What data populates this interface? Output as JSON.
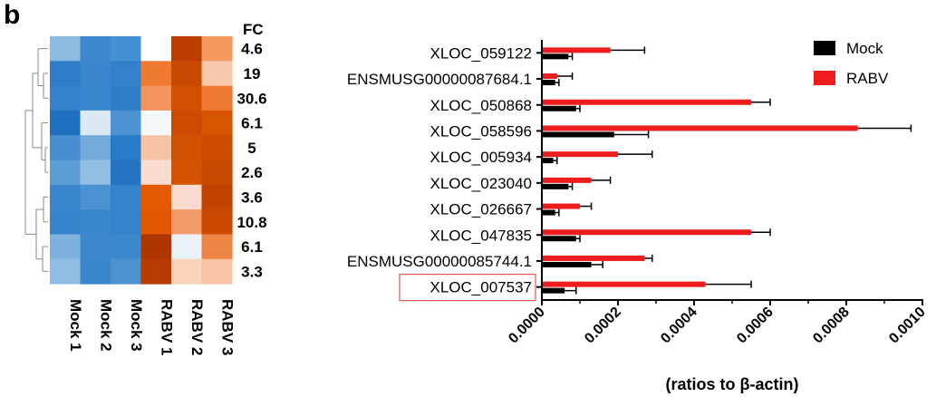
{
  "panel_label": "b",
  "heatmap": {
    "fc_header": "FC",
    "columns": [
      "Mock 1",
      "Mock 2",
      "Mock 3",
      "RABV 1",
      "RABV 2",
      "RABV 3"
    ],
    "fold_changes": [
      "4.6",
      "19",
      "30.6",
      "6.1",
      "5",
      "2.6",
      "3.6",
      "10.8",
      "6.1",
      "3.3"
    ],
    "cell_colors": [
      [
        "#8cbbe2",
        "#3d88cf",
        "#4590d2",
        "#ffffff",
        "#bb3e00",
        "#f49a5e"
      ],
      [
        "#2f7dc8",
        "#3b86cc",
        "#3381ca",
        "#ef7a30",
        "#c84900",
        "#f8c9ad"
      ],
      [
        "#3382cb",
        "#3887cd",
        "#2f7ec8",
        "#f39560",
        "#d05000",
        "#ef7a36"
      ],
      [
        "#1f6fc0",
        "#dbe9f5",
        "#4e93d1",
        "#f4f8fc",
        "#cb4b00",
        "#d75400"
      ],
      [
        "#478fd0",
        "#74a9dc",
        "#2a7bc6",
        "#f7c3a5",
        "#d25100",
        "#cb4b00"
      ],
      [
        "#5d9dd6",
        "#94bfe4",
        "#2574c3",
        "#f9dccd",
        "#d45200",
        "#c84900"
      ],
      [
        "#3a86cc",
        "#4c92d2",
        "#3583ca",
        "#e55a00",
        "#f9dccd",
        "#c04400"
      ],
      [
        "#3583cb",
        "#3b87cd",
        "#3583ca",
        "#e15800",
        "#f29a68",
        "#c94a00"
      ],
      [
        "#7fb1df",
        "#3d88cd",
        "#3c88cd",
        "#b03600",
        "#eaf2f9",
        "#ee8445"
      ],
      [
        "#8fbde3",
        "#3a86cc",
        "#4c92d1",
        "#b73b00",
        "#f9d2bc",
        "#f7c4a6"
      ]
    ]
  },
  "chart_data": {
    "type": "bar",
    "orientation": "horizontal",
    "categories": [
      "XLOC_059122",
      "ENSMUSG00000087684.1",
      "XLOC_050868",
      "XLOC_058596",
      "XLOC_005934",
      "XLOC_023040",
      "XLOC_026667",
      "XLOC_047835",
      "ENSMUSG00000085744.1",
      "XLOC_007537"
    ],
    "series": [
      {
        "name": "Mock",
        "values": [
          7e-05,
          3.5e-05,
          9e-05,
          0.00019,
          3e-05,
          7e-05,
          3.5e-05,
          9e-05,
          0.00013,
          6e-05
        ],
        "errors": [
          1e-05,
          1e-05,
          1e-05,
          9e-05,
          1e-05,
          1e-05,
          1e-05,
          1e-05,
          3e-05,
          3e-05
        ]
      },
      {
        "name": "RABV",
        "values": [
          0.00018,
          4e-05,
          0.00055,
          0.00083,
          0.0002,
          0.00013,
          0.0001,
          0.00055,
          0.00027,
          0.00043
        ],
        "errors": [
          9e-05,
          4e-05,
          5e-05,
          0.00014,
          9e-05,
          5e-05,
          3e-05,
          5e-05,
          2e-05,
          0.00012
        ]
      }
    ],
    "xlabel": "(ratios to β-actin)",
    "xlim": [
      0,
      0.001
    ],
    "xticks": [
      "0.0000",
      "0.0002",
      "0.0004",
      "0.0006",
      "0.0008",
      "0.0010"
    ],
    "legend_position": "top-right",
    "series_colors": {
      "Mock": "#000000",
      "RABV": "#ee1c1c"
    },
    "highlight_category": "XLOC_007537",
    "highlight_color": "#e05555"
  }
}
